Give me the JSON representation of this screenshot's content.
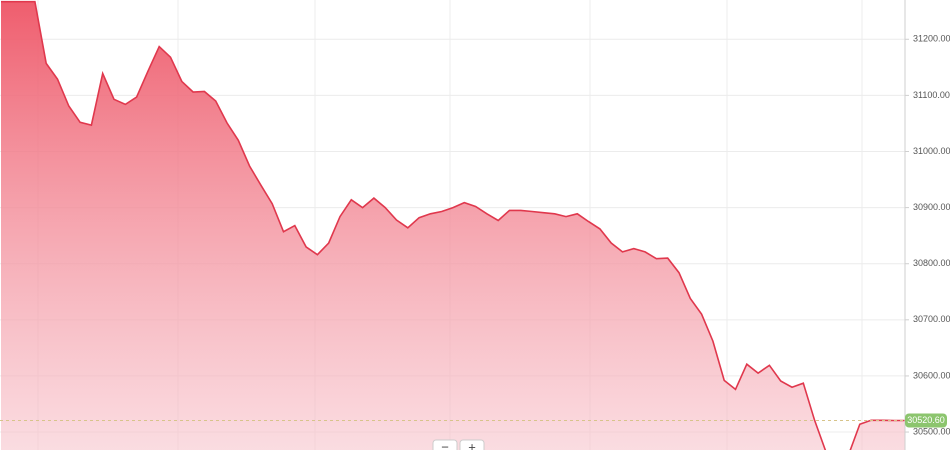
{
  "chart_data": {
    "type": "area",
    "color": "#e0384d",
    "values": [
      31267,
      31267,
      31267,
      31267,
      31157,
      31129,
      31081,
      31052,
      31047,
      31139,
      31093,
      31084,
      31097,
      31143,
      31187,
      31168,
      31125,
      31106,
      31107,
      31090,
      31051,
      31020,
      30974,
      30940,
      30907,
      30857,
      30868,
      30830,
      30816,
      30837,
      30884,
      30914,
      30900,
      30917,
      30900,
      30878,
      30864,
      30882,
      30889,
      30893,
      30900,
      30909,
      30902,
      30889,
      30877,
      30895,
      30895,
      30893,
      30891,
      30889,
      30884,
      30889,
      30875,
      30862,
      30837,
      30821,
      30827,
      30821,
      30809,
      30810,
      30784,
      30738,
      30710,
      30662,
      30592,
      30576,
      30621,
      30605,
      30619,
      30591,
      30580,
      30587,
      30521,
      30465,
      30450,
      30459,
      30514,
      30521,
      30521,
      30520.6,
      30520.6
    ],
    "ylim": [
      30468,
      31270
    ],
    "yticks": [
      {
        "value": 30500,
        "label": "30500.00"
      },
      {
        "value": 30600,
        "label": "30600.00"
      },
      {
        "value": 30700,
        "label": "30700.00"
      },
      {
        "value": 30800,
        "label": "30800.00"
      },
      {
        "value": 30900,
        "label": "30900.00"
      },
      {
        "value": 31000,
        "label": "31000.00"
      },
      {
        "value": 31100,
        "label": "31100.00"
      },
      {
        "value": 31200,
        "label": "31200.00"
      }
    ],
    "grid": true,
    "last_price": {
      "value": 30520.6,
      "label": "30520.60"
    }
  },
  "controls": [
    "−",
    "+"
  ]
}
